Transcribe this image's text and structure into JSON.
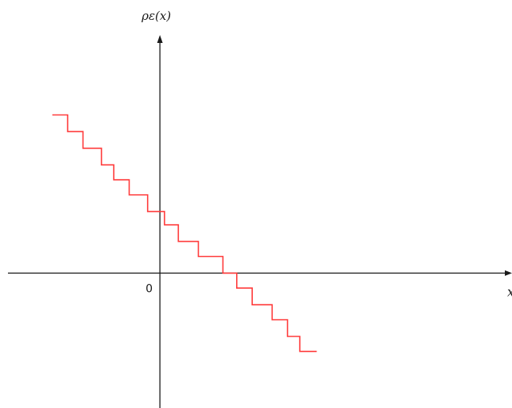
{
  "chart_data": {
    "type": "line",
    "title": "",
    "ylabel": "ρε(x)",
    "xlabel": "x",
    "origin_label": "0",
    "line_shape": "step",
    "grid": false,
    "xlim": [
      -10.4,
      22.9
    ],
    "ylim": [
      -8.1,
      16.4
    ],
    "series": [
      {
        "color": "#ff3b3b",
        "points": [
          [
            -7.0,
            9.5
          ],
          [
            -6.0,
            9.5
          ],
          [
            -6.0,
            8.5
          ],
          [
            -5.0,
            8.5
          ],
          [
            -5.0,
            7.5
          ],
          [
            -3.8,
            7.5
          ],
          [
            -3.8,
            6.5
          ],
          [
            -3.0,
            6.5
          ],
          [
            -3.0,
            5.6
          ],
          [
            -2.0,
            5.6
          ],
          [
            -2.0,
            4.7
          ],
          [
            -0.8,
            4.7
          ],
          [
            -0.8,
            3.7
          ],
          [
            0.3,
            3.7
          ],
          [
            0.3,
            2.9
          ],
          [
            1.2,
            2.9
          ],
          [
            1.2,
            1.9
          ],
          [
            2.5,
            1.9
          ],
          [
            2.5,
            1.0
          ],
          [
            4.1,
            1.0
          ],
          [
            4.1,
            0.0
          ],
          [
            5.0,
            0.0
          ],
          [
            5.0,
            -0.9
          ],
          [
            6.0,
            -0.9
          ],
          [
            6.0,
            -1.9
          ],
          [
            7.3,
            -1.9
          ],
          [
            7.3,
            -2.8
          ],
          [
            8.3,
            -2.8
          ],
          [
            8.3,
            -3.8
          ],
          [
            9.1,
            -3.8
          ],
          [
            9.1,
            -4.7
          ],
          [
            10.2,
            -4.7
          ]
        ]
      }
    ]
  }
}
